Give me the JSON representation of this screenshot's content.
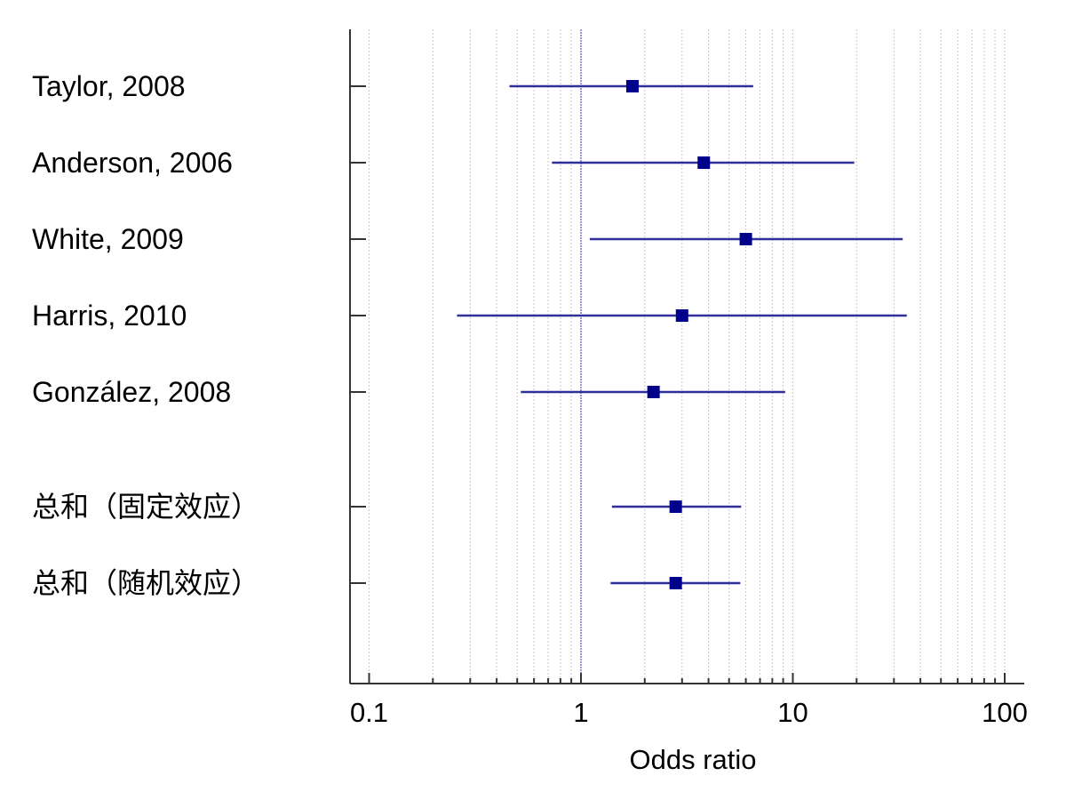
{
  "chart_data": {
    "type": "forest",
    "xlabel": "Odds ratio",
    "x_scale": "log",
    "xlim": [
      0.09,
      130
    ],
    "ticks": [
      0.1,
      1,
      10,
      100
    ],
    "tick_labels": [
      "0.1",
      "1",
      "10",
      "100"
    ],
    "reference_line": 1,
    "grid": true,
    "colors": {
      "marker": "#00008b",
      "ci": "#2f2f9a",
      "axis": "#333333",
      "grid": "#c8c8c8",
      "reference": "#3333aa"
    },
    "studies": [
      {
        "label": "Taylor, 2008",
        "or": 1.75,
        "lower": 0.46,
        "upper": 6.5
      },
      {
        "label": "Anderson, 2006",
        "or": 3.8,
        "lower": 0.73,
        "upper": 19.5
      },
      {
        "label": "White, 2009",
        "or": 6.0,
        "lower": 1.1,
        "upper": 33.0
      },
      {
        "label": "Harris, 2010",
        "or": 3.0,
        "lower": 0.26,
        "upper": 34.5
      },
      {
        "label": "González, 2008",
        "or": 2.2,
        "lower": 0.52,
        "upper": 9.2
      }
    ],
    "pooled": [
      {
        "label": "总和（固定效应）",
        "or": 2.8,
        "lower": 1.4,
        "upper": 5.7
      },
      {
        "label": "总和（随机效应）",
        "or": 2.8,
        "lower": 1.38,
        "upper": 5.65
      }
    ]
  }
}
